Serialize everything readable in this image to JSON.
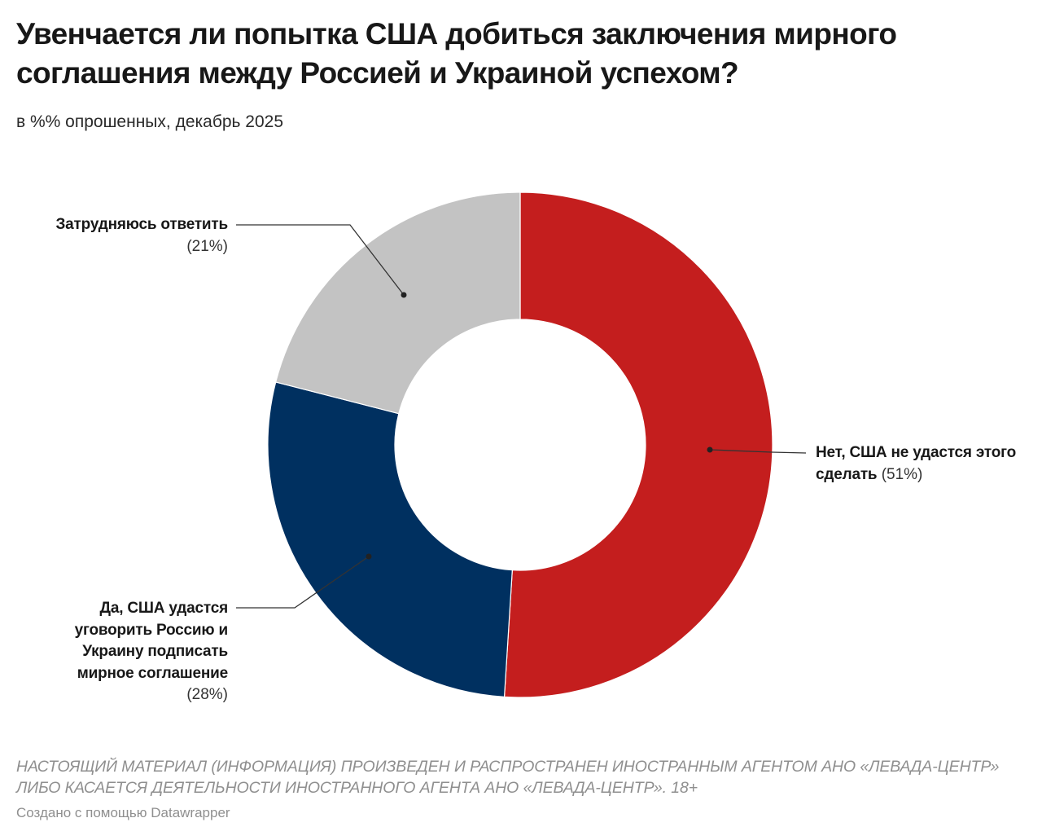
{
  "title": "Увенчается ли попытка США добиться заключения мирного соглашения между Россией и Украиной успехом?",
  "subtitle": "в %% опрошенных, декабрь 2025",
  "chart_data": {
    "type": "pie",
    "donut": true,
    "slices": [
      {
        "label": "Нет, США не удастся этого сделать",
        "value": 51,
        "value_label": "(51%)",
        "color": "#c41e1e"
      },
      {
        "label": "Да, США удастся уговорить Россию и Украину подписать мирное соглашение",
        "value": 28,
        "value_label": "(28%)",
        "color": "#003060"
      },
      {
        "label": "Затрудняюсь ответить",
        "value": 21,
        "value_label": "(21%)",
        "color": "#c3c3c3"
      }
    ]
  },
  "notes": "НАСТОЯЩИЙ МАТЕРИАЛ (ИНФОРМАЦИЯ) ПРОИЗВЕДЕН И РАСПРОСТРАНЕН ИНОСТРАННЫМ АГЕНТОМ АНО «ЛЕВАДА-ЦЕНТР» ЛИБО КАСАЕТСЯ ДЕЯТЕЛЬНОСТИ ИНОСТРАННОГО АГЕНТА АНО «ЛЕВАДА-ЦЕНТР». 18+",
  "credit": "Создано с помощью Datawrapper"
}
